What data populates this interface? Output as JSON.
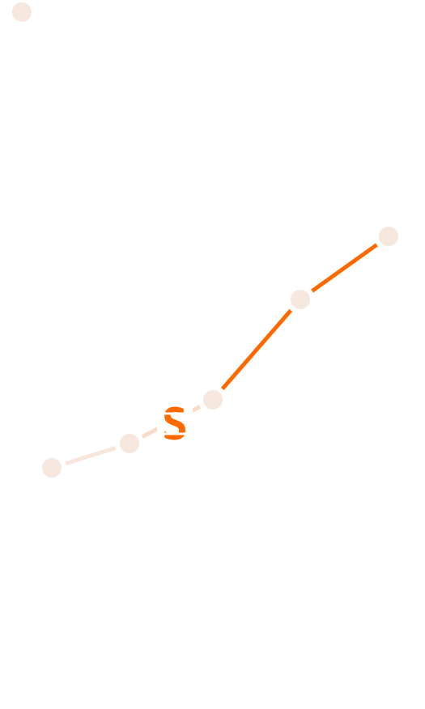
{
  "logo": {
    "text": "S"
  }
}
